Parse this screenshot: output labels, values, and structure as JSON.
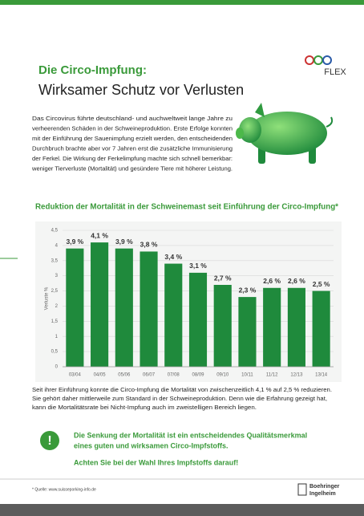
{
  "header": {
    "kicker": "Die Circo-Impfung:",
    "title": "Wirksamer Schutz vor Verlusten",
    "logo": "FLEX"
  },
  "intro": [
    "Das Circovirus führte deutschland- und auchweltweit lange Jahre zu",
    "verheerenden Schäden in der Schweineproduktion. Erste Erfolge konnten",
    "mit der Einführung der Sauenimpfung erzielt werden, den entscheidenden",
    "Durchbruch brachte aber vor 7 Jahren erst die zusätzliche Immunisierung",
    "der Ferkel. Die Wirkung der Ferkelimpfung machte sich schnell bemerkbar:",
    "weniger Tierverluste (Mortalität) und gesündere Tiere mit höherer Leistung."
  ],
  "chart_data": {
    "type": "bar",
    "title": "Reduktion der Mortalität in der Schweinemast seit Einführung der Circo-Impfung*",
    "y_label": "Verluste %",
    "categories": [
      "03/04",
      "04/05",
      "05/06",
      "06/07",
      "07/08",
      "08/09",
      "09/10",
      "10/11",
      "11/12",
      "12/13",
      "13/14"
    ],
    "values": [
      3.9,
      4.1,
      3.9,
      3.8,
      3.4,
      3.1,
      2.7,
      2.3,
      2.6,
      2.6,
      2.5
    ],
    "value_labels": [
      "3,9 %",
      "4,1 %",
      "3,9 %",
      "3,8 %",
      "3,4 %",
      "3,1 %",
      "2,7 %",
      "2,3 %",
      "2,6 %",
      "2,6 %",
      "2,5 %"
    ],
    "color": "#1f8a3c",
    "ylim": [
      0,
      4.5
    ],
    "yticks": [
      0,
      {
        "value": 0.5,
        "label": "0,5"
      },
      1,
      {
        "value": 1.5,
        "label": "1,5"
      },
      2,
      {
        "value": 2.5,
        "label": "2,5"
      },
      3,
      {
        "value": 3.5,
        "label": "3,5"
      },
      4,
      {
        "value": 4.5,
        "label": "4,5"
      }
    ],
    "grid": true
  },
  "summary": [
    "Seit ihrer Einführung konnte die Circo-Impfung die Mortalität von zwischenzeitlich 4,1 % auf 2,5 % reduzieren.",
    "Sie gehört daher mittlerweile zum Standard in der Schweineproduktion. Denn wie die Erfahrung gezeigt hat,",
    "kann die Mortalitätsrate bei Nicht-Impfung auch im zweistelligen Bereich liegen."
  ],
  "callout": {
    "icon": "!",
    "lines": [
      "Die Senkung der Mortalität ist ein entscheidendes Qualitätsmerkmal",
      "eines guten und wirksamen Circo-Impfstoffs."
    ],
    "note": "Achten Sie bei der Wahl Ihres Impfstoffs darauf!"
  },
  "footer": {
    "source": "* Quelle: www.suisseporking-info.de",
    "brand": [
      "Boehringer",
      "Ingelheim"
    ]
  }
}
